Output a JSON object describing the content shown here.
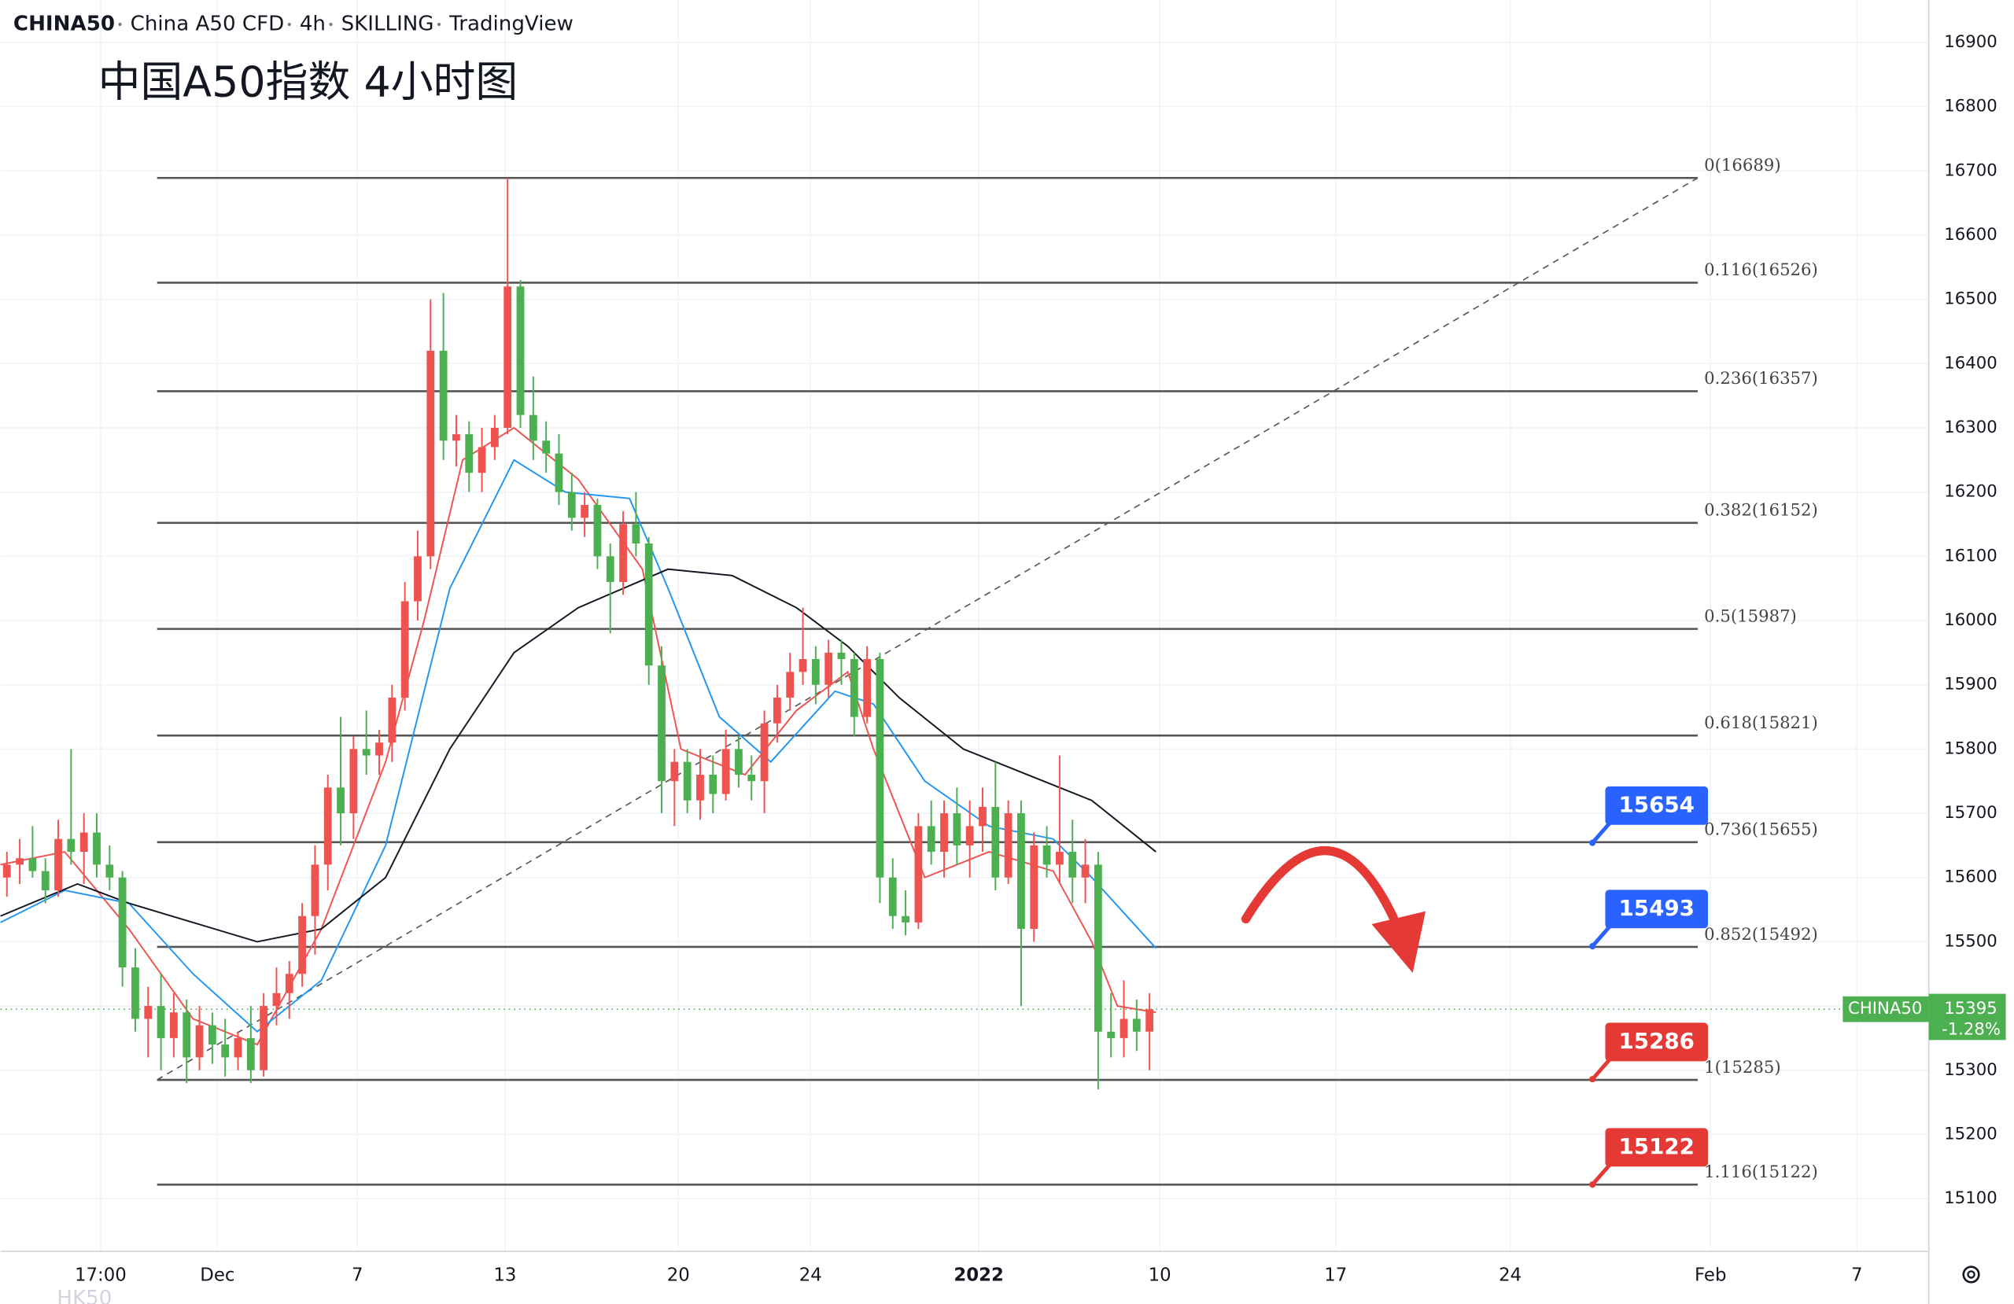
{
  "chart_data": {
    "type": "candlestick",
    "header": [
      "CHINA50",
      "China A50 CFD",
      "4h",
      "SKILLING",
      "TradingView"
    ],
    "title": "中国A50指数 4小时图",
    "watermark": "HK50",
    "up_color": "#ef5350",
    "down_color": "#4caf50",
    "grid": true,
    "ylim": [
      15018,
      16966
    ],
    "yticks": [
      15100,
      15200,
      15300,
      15400,
      15500,
      15600,
      15700,
      15800,
      15900,
      16000,
      16100,
      16200,
      16300,
      16400,
      16500,
      16600,
      16700,
      16800,
      16900
    ],
    "xlim": [
      0,
      150
    ],
    "xticks": [
      {
        "value": 7.8,
        "label": "17:00"
      },
      {
        "value": 16.9,
        "label": "Dec"
      },
      {
        "value": 27.8,
        "label": "7"
      },
      {
        "value": 39.3,
        "label": "13"
      },
      {
        "value": 52.8,
        "label": "20"
      },
      {
        "value": 63.1,
        "label": "24"
      },
      {
        "value": 76.2,
        "label": "2022"
      },
      {
        "value": 90.3,
        "label": "10"
      },
      {
        "value": 104,
        "label": "17"
      },
      {
        "value": 117.6,
        "label": "24"
      },
      {
        "value": 133.2,
        "label": "Feb"
      },
      {
        "value": 144.6,
        "label": "7"
      }
    ],
    "ohlc": [
      [
        15600,
        15640,
        15570,
        15620
      ],
      [
        15620,
        15660,
        15590,
        15630
      ],
      [
        15630,
        15680,
        15600,
        15610
      ],
      [
        15610,
        15630,
        15560,
        15580
      ],
      [
        15580,
        15690,
        15570,
        15660
      ],
      [
        15660,
        15800,
        15620,
        15640
      ],
      [
        15640,
        15700,
        15590,
        15670
      ],
      [
        15670,
        15700,
        15600,
        15620
      ],
      [
        15620,
        15650,
        15580,
        15600
      ],
      [
        15600,
        15610,
        15430,
        15460
      ],
      [
        15460,
        15490,
        15360,
        15380
      ],
      [
        15380,
        15430,
        15320,
        15400
      ],
      [
        15400,
        15450,
        15300,
        15350
      ],
      [
        15350,
        15420,
        15320,
        15390
      ],
      [
        15390,
        15410,
        15280,
        15320
      ],
      [
        15320,
        15400,
        15300,
        15370
      ],
      [
        15370,
        15390,
        15310,
        15340
      ],
      [
        15340,
        15380,
        15290,
        15320
      ],
      [
        15320,
        15360,
        15300,
        15350
      ],
      [
        15350,
        15400,
        15280,
        15300
      ],
      [
        15300,
        15420,
        15290,
        15400
      ],
      [
        15400,
        15460,
        15370,
        15420
      ],
      [
        15420,
        15470,
        15380,
        15450
      ],
      [
        15450,
        15560,
        15430,
        15540
      ],
      [
        15540,
        15650,
        15480,
        15620
      ],
      [
        15620,
        15760,
        15580,
        15740
      ],
      [
        15740,
        15850,
        15650,
        15700
      ],
      [
        15700,
        15820,
        15660,
        15800
      ],
      [
        15800,
        15860,
        15760,
        15790
      ],
      [
        15790,
        15830,
        15760,
        15810
      ],
      [
        15810,
        15900,
        15780,
        15880
      ],
      [
        15880,
        16060,
        15860,
        16030
      ],
      [
        16030,
        16140,
        16000,
        16100
      ],
      [
        16100,
        16500,
        16080,
        16420
      ],
      [
        16420,
        16510,
        16250,
        16280
      ],
      [
        16280,
        16320,
        16240,
        16290
      ],
      [
        16290,
        16310,
        16200,
        16230
      ],
      [
        16230,
        16300,
        16200,
        16270
      ],
      [
        16270,
        16320,
        16250,
        16300
      ],
      [
        16300,
        16689,
        16290,
        16520
      ],
      [
        16520,
        16530,
        16300,
        16320
      ],
      [
        16320,
        16380,
        16250,
        16280
      ],
      [
        16280,
        16310,
        16230,
        16260
      ],
      [
        16260,
        16290,
        16180,
        16200
      ],
      [
        16200,
        16230,
        16140,
        16160
      ],
      [
        16160,
        16200,
        16130,
        16180
      ],
      [
        16180,
        16190,
        16080,
        16100
      ],
      [
        16100,
        16120,
        15980,
        16060
      ],
      [
        16060,
        16170,
        16040,
        16150
      ],
      [
        16150,
        16200,
        16100,
        16120
      ],
      [
        16120,
        16130,
        15900,
        15930
      ],
      [
        15930,
        15960,
        15700,
        15750
      ],
      [
        15750,
        15800,
        15680,
        15780
      ],
      [
        15780,
        15800,
        15700,
        15720
      ],
      [
        15720,
        15800,
        15690,
        15760
      ],
      [
        15760,
        15790,
        15700,
        15730
      ],
      [
        15730,
        15830,
        15720,
        15800
      ],
      [
        15800,
        15820,
        15740,
        15760
      ],
      [
        15760,
        15790,
        15720,
        15750
      ],
      [
        15750,
        15860,
        15700,
        15840
      ],
      [
        15840,
        15900,
        15810,
        15880
      ],
      [
        15880,
        15950,
        15860,
        15920
      ],
      [
        15920,
        16020,
        15900,
        15940
      ],
      [
        15940,
        15960,
        15870,
        15900
      ],
      [
        15900,
        15970,
        15880,
        15950
      ],
      [
        15950,
        15970,
        15900,
        15940
      ],
      [
        15940,
        15950,
        15820,
        15850
      ],
      [
        15850,
        15960,
        15840,
        15940
      ],
      [
        15940,
        15950,
        15560,
        15600
      ],
      [
        15600,
        15630,
        15520,
        15540
      ],
      [
        15540,
        15580,
        15510,
        15530
      ],
      [
        15530,
        15700,
        15520,
        15680
      ],
      [
        15680,
        15720,
        15620,
        15640
      ],
      [
        15640,
        15720,
        15600,
        15700
      ],
      [
        15700,
        15740,
        15620,
        15650
      ],
      [
        15650,
        15720,
        15600,
        15680
      ],
      [
        15680,
        15740,
        15640,
        15710
      ],
      [
        15710,
        15780,
        15580,
        15600
      ],
      [
        15600,
        15720,
        15590,
        15700
      ],
      [
        15700,
        15720,
        15400,
        15520
      ],
      [
        15520,
        15670,
        15500,
        15650
      ],
      [
        15650,
        15680,
        15600,
        15620
      ],
      [
        15620,
        15790,
        15590,
        15640
      ],
      [
        15640,
        15690,
        15560,
        15600
      ],
      [
        15600,
        15660,
        15560,
        15620
      ],
      [
        15620,
        15640,
        15270,
        15360
      ],
      [
        15360,
        15420,
        15320,
        15350
      ],
      [
        15350,
        15440,
        15320,
        15380
      ],
      [
        15380,
        15410,
        15330,
        15360
      ],
      [
        15360,
        15420,
        15300,
        15395
      ]
    ],
    "lines": [
      {
        "color": "#ef5350",
        "x": [
          0,
          5,
          10,
          15,
          20,
          25,
          30,
          33,
          36,
          40,
          45,
          50,
          53,
          58,
          62,
          66,
          68,
          72,
          77,
          82,
          85,
          87,
          90
        ],
        "values": [
          15620,
          15640,
          15520,
          15380,
          15340,
          15520,
          15780,
          16000,
          16250,
          16300,
          16220,
          16080,
          15800,
          15760,
          15860,
          15920,
          15800,
          15600,
          15640,
          15610,
          15500,
          15400,
          15390
        ]
      },
      {
        "color": "#2196f3",
        "x": [
          0,
          5,
          10,
          15,
          20,
          25,
          30,
          35,
          40,
          44,
          49,
          52,
          56,
          60,
          65,
          68,
          72,
          77,
          82,
          85,
          90
        ],
        "values": [
          15530,
          15580,
          15560,
          15450,
          15360,
          15440,
          15650,
          16050,
          16250,
          16200,
          16190,
          16050,
          15850,
          15780,
          15890,
          15870,
          15750,
          15680,
          15660,
          15600,
          15490
        ]
      },
      {
        "color": "#131722",
        "x": [
          0,
          6,
          10,
          15,
          20,
          25,
          30,
          35,
          40,
          45,
          52,
          57,
          62,
          66,
          70,
          75,
          80,
          85,
          90
        ],
        "values": [
          15540,
          15590,
          15560,
          15530,
          15500,
          15520,
          15600,
          15800,
          15950,
          16020,
          16080,
          16070,
          16020,
          15960,
          15880,
          15800,
          15760,
          15720,
          15640
        ]
      }
    ],
    "trendline": {
      "x": [
        12.2,
        132.2
      ],
      "values": [
        15285,
        16689
      ]
    },
    "fib": {
      "x": [
        12.2,
        132.2
      ],
      "levels": [
        {
          "label": "0(16689)",
          "value": 16689
        },
        {
          "label": "0.116(16526)",
          "value": 16526
        },
        {
          "label": "0.236(16357)",
          "value": 16357
        },
        {
          "label": "0.382(16152)",
          "value": 16152
        },
        {
          "label": "0.5(15987)",
          "value": 15987
        },
        {
          "label": "0.618(15821)",
          "value": 15821
        },
        {
          "label": "0.736(15655)",
          "value": 15655
        },
        {
          "label": "0.852(15492)",
          "value": 15492
        },
        {
          "label": "1(15285)",
          "value": 15285
        },
        {
          "label": "1.116(15122)",
          "value": 15122
        }
      ]
    },
    "badges": [
      {
        "value": 15654,
        "color": "#2962ff"
      },
      {
        "value": 15493,
        "color": "#2962ff"
      },
      {
        "value": 15286,
        "color": "#e53935"
      },
      {
        "value": 15122,
        "color": "#e53935"
      }
    ],
    "badge_x": 124,
    "last_price": {
      "symbol": "CHINA50",
      "value": 15395,
      "change": "-1.28%",
      "color": "#4caf50"
    }
  }
}
